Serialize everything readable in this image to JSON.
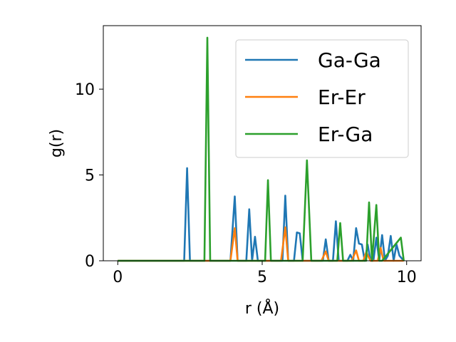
{
  "chart_data": {
    "type": "line",
    "xlabel": "r (Å)",
    "ylabel": "g(r)",
    "xlim": [
      -0.5,
      10.5
    ],
    "ylim": [
      0,
      13.7
    ],
    "xticks": [
      0,
      5,
      10
    ],
    "yticks": [
      0,
      5,
      10
    ],
    "x_tick_labels": [
      "0",
      "5",
      "10"
    ],
    "y_tick_labels": [
      "0",
      "5",
      "10"
    ],
    "grid": false,
    "legend_position": "top-right",
    "series": [
      {
        "name": "Ga-Ga",
        "color": "#1f77b4",
        "x": [
          0,
          2.3,
          2.4,
          2.5,
          3.9,
          4.05,
          4.15,
          4.25,
          4.45,
          4.55,
          4.65,
          4.75,
          4.85,
          5.7,
          5.8,
          5.9,
          6.1,
          6.2,
          6.3,
          6.4,
          7.1,
          7.2,
          7.3,
          7.45,
          7.55,
          7.65,
          7.95,
          8.05,
          8.15,
          8.25,
          8.35,
          8.45,
          8.55,
          8.65,
          8.75,
          8.85,
          8.95,
          9.05,
          9.15,
          9.25,
          9.35,
          9.45,
          9.55,
          9.65,
          9.75,
          9.9
        ],
        "y": [
          0,
          0,
          5.4,
          0,
          0,
          3.75,
          0,
          0,
          0,
          3.0,
          0,
          1.4,
          0,
          0,
          3.8,
          0,
          0,
          1.65,
          1.6,
          0,
          0,
          1.25,
          0,
          0,
          2.3,
          0,
          0,
          0.35,
          0,
          1.9,
          1.0,
          0.95,
          0,
          0.95,
          0,
          0,
          1.35,
          0,
          1.5,
          0,
          0.3,
          1.45,
          0,
          0.95,
          0.3,
          0
        ]
      },
      {
        "name": "Er-Er",
        "color": "#ff7f0e",
        "x": [
          0,
          3.9,
          4.05,
          4.15,
          5.65,
          5.8,
          5.9,
          7.05,
          7.2,
          7.3,
          8.1,
          8.25,
          8.35,
          8.5,
          8.6,
          8.75,
          9.0,
          9.1,
          9.2,
          9.9
        ],
        "y": [
          0,
          0,
          1.9,
          0,
          0,
          1.95,
          0,
          0,
          0.55,
          0,
          0,
          0.6,
          0,
          0,
          0.5,
          0,
          0,
          0.75,
          0,
          0
        ]
      },
      {
        "name": "Er-Ga",
        "color": "#2ca02c",
        "x": [
          0,
          3.0,
          3.1,
          3.2,
          5.1,
          5.2,
          5.3,
          6.4,
          6.55,
          6.7,
          7.6,
          7.7,
          7.8,
          8.6,
          8.7,
          8.8,
          8.95,
          9.05,
          9.15,
          9.8,
          9.9
        ],
        "y": [
          0,
          0,
          13.0,
          0,
          0,
          4.7,
          0,
          0,
          5.85,
          0,
          0,
          2.2,
          0,
          0,
          3.4,
          0,
          3.25,
          0,
          0,
          1.35,
          0
        ]
      }
    ]
  }
}
